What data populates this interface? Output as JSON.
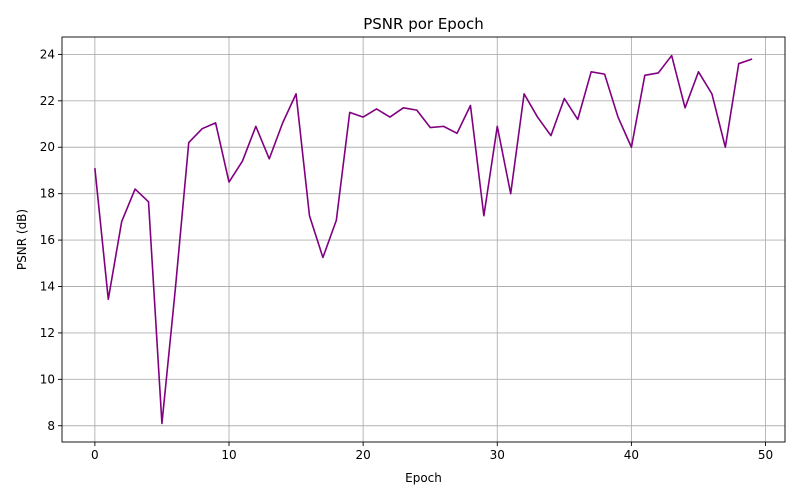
{
  "chart_data": {
    "type": "line",
    "title": "PSNR por Epoch",
    "xlabel": "Epoch",
    "ylabel": "PSNR (dB)",
    "xlim": [
      -2.45,
      51.45
    ],
    "ylim": [
      7.3,
      24.75
    ],
    "xticks": [
      0,
      10,
      20,
      30,
      40,
      50
    ],
    "yticks": [
      8,
      10,
      12,
      14,
      16,
      18,
      20,
      22,
      24
    ],
    "grid": true,
    "line_color": "#800080",
    "series": [
      {
        "x": [
          0,
          1,
          2,
          3,
          4,
          5,
          6,
          7,
          8,
          9,
          10,
          11,
          12,
          13,
          14,
          15,
          16,
          17,
          18,
          19,
          20,
          21,
          22,
          23,
          24,
          25,
          26,
          27,
          28,
          29,
          30,
          31,
          32,
          33,
          34,
          35,
          36,
          37,
          38,
          39,
          40,
          41,
          42,
          43,
          44,
          45,
          46,
          47,
          48,
          49
        ],
        "values": [
          19.1,
          13.45,
          16.8,
          18.2,
          17.65,
          8.1,
          13.9,
          20.2,
          20.8,
          21.05,
          18.5,
          19.4,
          20.9,
          19.5,
          21.05,
          22.3,
          17.05,
          15.25,
          16.85,
          21.5,
          21.3,
          21.65,
          21.3,
          21.7,
          21.6,
          20.85,
          20.9,
          20.6,
          21.8,
          17.05,
          20.9,
          18.0,
          22.3,
          21.3,
          20.5,
          22.1,
          21.2,
          23.25,
          23.15,
          21.3,
          20.0,
          23.1,
          23.2,
          23.95,
          21.7,
          23.25,
          22.3,
          20.0,
          23.6,
          23.8
        ]
      }
    ]
  }
}
